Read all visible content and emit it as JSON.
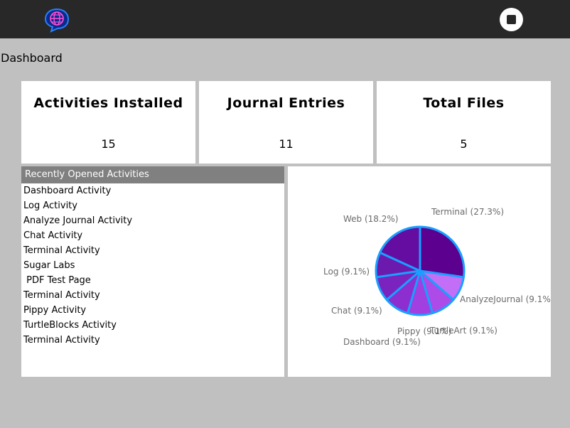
{
  "toolbar": {
    "activity_icon": "globe-chat-bubble-icon",
    "stop_icon": "stop-icon",
    "colors": {
      "background": "#282828",
      "icon_accent": "#2a7fff"
    }
  },
  "page": {
    "title": "Dashboard"
  },
  "stats": [
    {
      "label": "Activities Installed",
      "value": "15"
    },
    {
      "label": "Journal Entries",
      "value": "11"
    },
    {
      "label": "Total Files",
      "value": "5"
    }
  ],
  "recent": {
    "header": "Recently Opened Activities",
    "items": [
      "Dashboard Activity",
      "Log Activity",
      "Analyze Journal Activity",
      "Chat Activity",
      "Terminal Activity",
      "Sugar Labs",
      " PDF Test Page",
      "Terminal Activity",
      "Pippy Activity",
      "TurtleBlocks Activity",
      "Terminal Activity"
    ]
  },
  "chart_data": {
    "type": "pie",
    "title": "",
    "slices": [
      {
        "name": "Terminal",
        "value": 3,
        "label": "Terminal (27.3%)",
        "color": "#5c008f"
      },
      {
        "name": "AnalyzeJournal",
        "value": 1,
        "label": "AnalyzeJournal (9.1%)",
        "color": "#c36ef7"
      },
      {
        "name": "TurtleArt",
        "value": 1,
        "label": "TurtleArt (9.1%)",
        "color": "#ad4be8"
      },
      {
        "name": "Pippy",
        "value": 1,
        "label": "Pippy (9.1%)",
        "color": "#a13fe0"
      },
      {
        "name": "Dashboard",
        "value": 1,
        "label": "Dashboard (9.1%)",
        "color": "#8c2ed0"
      },
      {
        "name": "Chat",
        "value": 1,
        "label": "Chat (9.1%)",
        "color": "#7a23bf"
      },
      {
        "name": "Log",
        "value": 1,
        "label": "Log (9.1%)",
        "color": "#6c1aae"
      },
      {
        "name": "Web",
        "value": 2,
        "label": "Web (18.2%)",
        "color": "#650da1"
      }
    ],
    "border_color": "#1a9fff"
  }
}
